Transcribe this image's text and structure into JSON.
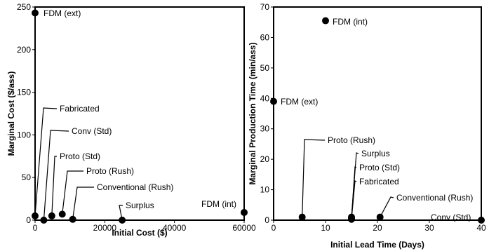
{
  "chart_data": [
    {
      "type": "scatter",
      "xlabel": "Initial Cost ($)",
      "ylabel": "Marginal Cost ($/ass)",
      "xlim": [
        0,
        60000
      ],
      "ylim": [
        0,
        250
      ],
      "xticks": [
        0,
        20000,
        40000,
        60000
      ],
      "xtick_labels": [
        "0",
        "20000",
        "40000",
        "60000"
      ],
      "yticks": [
        0,
        50,
        100,
        150,
        200,
        250
      ],
      "ytick_labels": [
        "0",
        "50",
        "100",
        "150",
        "200",
        "250"
      ],
      "grid": false,
      "points": [
        {
          "label": "FDM (ext)",
          "x": 0,
          "y": 243
        },
        {
          "label": "Fabricated",
          "x": 0,
          "y": 5
        },
        {
          "label": "Conv (Std)",
          "x": 2500,
          "y": 0
        },
        {
          "label": "Proto (Std)",
          "x": 4800,
          "y": 5
        },
        {
          "label": "Proto (Rush)",
          "x": 7800,
          "y": 7
        },
        {
          "label": "Conventional (Rush)",
          "x": 10800,
          "y": 1
        },
        {
          "label": "Surplus",
          "x": 25000,
          "y": 0
        },
        {
          "label": "FDM (int)",
          "x": 60000,
          "y": 9
        }
      ]
    },
    {
      "type": "scatter",
      "xlabel": "Initial Lead Time (Days)",
      "ylabel": "Marginal Production Time (min/ass)",
      "xlim": [
        0,
        40
      ],
      "ylim": [
        0,
        70
      ],
      "xticks": [
        0,
        10,
        20,
        30,
        40
      ],
      "xtick_labels": [
        "0",
        "10",
        "20",
        "30",
        "40"
      ],
      "yticks": [
        0,
        10,
        20,
        30,
        40,
        50,
        60,
        70
      ],
      "ytick_labels": [
        "0",
        "10",
        "20",
        "30",
        "40",
        "50",
        "60",
        "70"
      ],
      "grid": false,
      "points": [
        {
          "label": "FDM (int)",
          "x": 10,
          "y": 65.5
        },
        {
          "label": "FDM (ext)",
          "x": 0,
          "y": 39
        },
        {
          "label": "Proto (Rush)",
          "x": 5.5,
          "y": 1
        },
        {
          "label": "Surplus",
          "x": 15,
          "y": 1
        },
        {
          "label": "Proto (Std)",
          "x": 15,
          "y": 0.5
        },
        {
          "label": "Fabricated",
          "x": 15,
          "y": 0.3
        },
        {
          "label": "Conventional (Rush)",
          "x": 20.5,
          "y": 1
        },
        {
          "label": "Conv (Std)",
          "x": 40,
          "y": 0
        }
      ]
    }
  ]
}
